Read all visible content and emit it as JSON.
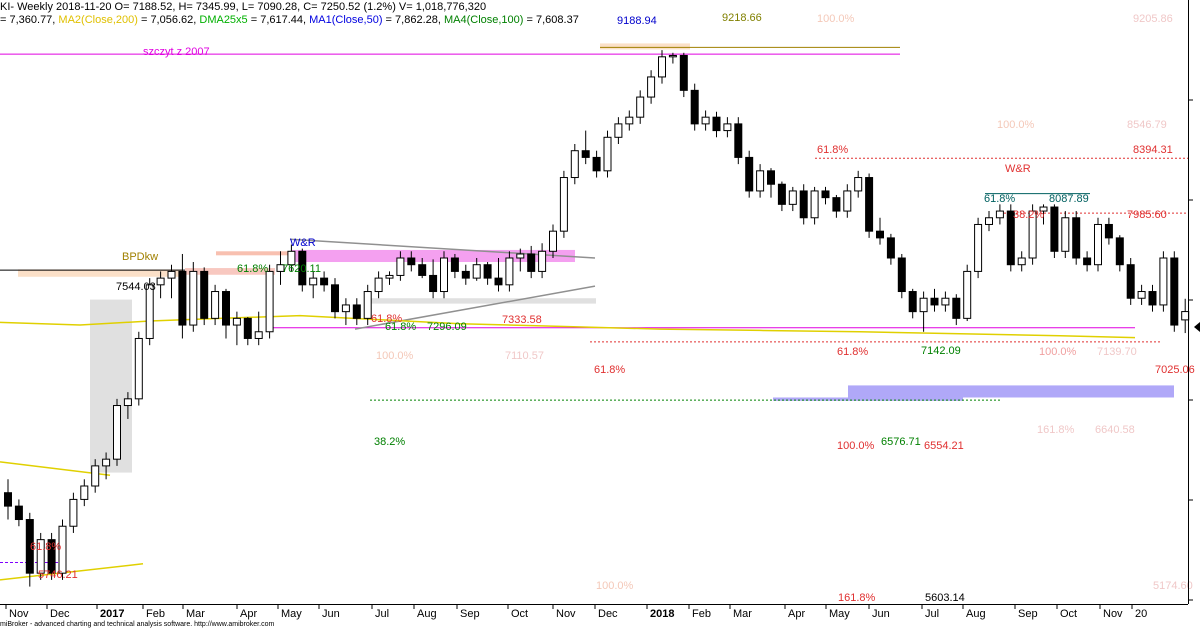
{
  "header": {
    "line1": "KI- Weekly 2018-11-20 O= 7188.52, H= 7345.99, L= 7090.28, C= 7250.52 (1.2%) V= 1,018,776,320",
    "line2": [
      {
        "text": "= 7,360.77, ",
        "color": "#000000"
      },
      {
        "text": "MA2(Close,200)",
        "color": "#e0c000"
      },
      {
        "text": " = 7,056.62, ",
        "color": "#000000"
      },
      {
        "text": "DMA25x5",
        "color": "#00b000"
      },
      {
        "text": " = 7,617.44, ",
        "color": "#000000"
      },
      {
        "text": "MA1(Close,50)",
        "color": "#0000e0"
      },
      {
        "text": " = 7,862.28, ",
        "color": "#000000"
      },
      {
        "text": "MA4(Close,100)",
        "color": "#008000"
      },
      {
        "text": " = 7,608.37",
        "color": "#000000"
      }
    ]
  },
  "footer": "miBroker - advanced charting and technical analysis software. http://www.amibroker.com",
  "chart_data": {
    "type": "candlestick",
    "title": "",
    "ylim": [
      5100,
      9350
    ],
    "x_axis_labels": [
      "Nov",
      "Dec",
      "2017",
      "Feb",
      "Mar",
      "Apr",
      "May",
      "Jun",
      "Jul",
      "Aug",
      "Sep",
      "Oct",
      "Nov",
      "Dec",
      "2018",
      "Feb",
      "Mar",
      "Apr",
      "May",
      "Jun",
      "Jul",
      "Aug",
      "Sep",
      "Oct",
      "Nov",
      "20"
    ],
    "candles": [
      [
        5900,
        6000,
        5700,
        5800
      ],
      [
        5800,
        5850,
        5650,
        5700
      ],
      [
        5700,
        5750,
        5200,
        5300
      ],
      [
        5300,
        5600,
        5250,
        5550
      ],
      [
        5550,
        5600,
        5250,
        5300
      ],
      [
        5300,
        5700,
        5250,
        5650
      ],
      [
        5650,
        5900,
        5600,
        5850
      ],
      [
        5850,
        6000,
        5800,
        5950
      ],
      [
        5950,
        6150,
        5900,
        6100
      ],
      [
        6100,
        6200,
        6000,
        6150
      ],
      [
        6150,
        6600,
        6100,
        6550
      ],
      [
        6550,
        6650,
        6450,
        6600
      ],
      [
        6600,
        7100,
        6550,
        7050
      ],
      [
        7050,
        7500,
        7000,
        7450
      ],
      [
        7450,
        7550,
        7350,
        7500
      ],
      [
        7500,
        7600,
        7350,
        7550
      ],
      [
        7550,
        7680,
        7050,
        7150
      ],
      [
        7150,
        7620,
        7100,
        7550
      ],
      [
        7550,
        7580,
        7150,
        7200
      ],
      [
        7200,
        7450,
        7150,
        7400
      ],
      [
        7400,
        7420,
        7050,
        7150
      ],
      [
        7150,
        7250,
        7000,
        7200
      ],
      [
        7200,
        7210,
        7000,
        7050
      ],
      [
        7050,
        7250,
        7000,
        7100
      ],
      [
        7100,
        7600,
        7050,
        7550
      ],
      [
        7550,
        7700,
        7450,
        7600
      ],
      [
        7600,
        7750,
        7550,
        7700
      ],
      [
        7700,
        7720,
        7400,
        7450
      ],
      [
        7450,
        7550,
        7350,
        7500
      ],
      [
        7500,
        7550,
        7400,
        7450
      ],
      [
        7450,
        7500,
        7200,
        7250
      ],
      [
        7250,
        7350,
        7150,
        7300
      ],
      [
        7300,
        7350,
        7150,
        7200
      ],
      [
        7200,
        7450,
        7150,
        7400
      ],
      [
        7400,
        7550,
        7350,
        7500
      ],
      [
        7500,
        7550,
        7450,
        7520
      ],
      [
        7520,
        7700,
        7480,
        7650
      ],
      [
        7650,
        7700,
        7550,
        7600
      ],
      [
        7600,
        7650,
        7500,
        7520
      ],
      [
        7520,
        7640,
        7350,
        7400
      ],
      [
        7400,
        7700,
        7350,
        7650
      ],
      [
        7650,
        7680,
        7500,
        7550
      ],
      [
        7550,
        7600,
        7450,
        7500
      ],
      [
        7500,
        7650,
        7480,
        7600
      ],
      [
        7600,
        7620,
        7450,
        7500
      ],
      [
        7500,
        7650,
        7400,
        7450
      ],
      [
        7450,
        7700,
        7400,
        7650
      ],
      [
        7650,
        7720,
        7550,
        7680
      ],
      [
        7680,
        7740,
        7500,
        7550
      ],
      [
        7550,
        7760,
        7500,
        7700
      ],
      [
        7700,
        7900,
        7650,
        7850
      ],
      [
        7850,
        8300,
        7800,
        8250
      ],
      [
        8250,
        8500,
        8200,
        8450
      ],
      [
        8450,
        8600,
        8350,
        8400
      ],
      [
        8400,
        8450,
        8250,
        8300
      ],
      [
        8300,
        8600,
        8250,
        8550
      ],
      [
        8550,
        8700,
        8500,
        8650
      ],
      [
        8650,
        8750,
        8600,
        8700
      ],
      [
        8700,
        8900,
        8650,
        8850
      ],
      [
        8850,
        9050,
        8800,
        9000
      ],
      [
        9000,
        9200,
        8950,
        9150
      ],
      [
        9150,
        9180,
        9100,
        9160
      ],
      [
        9160,
        9180,
        8850,
        8900
      ],
      [
        8900,
        8950,
        8600,
        8650
      ],
      [
        8650,
        8750,
        8600,
        8700
      ],
      [
        8700,
        8740,
        8550,
        8600
      ],
      [
        8600,
        8700,
        8550,
        8650
      ],
      [
        8650,
        8700,
        8350,
        8400
      ],
      [
        8400,
        8450,
        8100,
        8150
      ],
      [
        8150,
        8350,
        8100,
        8300
      ],
      [
        8300,
        8320,
        8100,
        8200
      ],
      [
        8200,
        8220,
        8000,
        8050
      ],
      [
        8050,
        8180,
        8000,
        8150
      ],
      [
        8150,
        8200,
        7900,
        7950
      ],
      [
        7950,
        8180,
        7900,
        8150
      ],
      [
        8150,
        8180,
        8050,
        8100
      ],
      [
        8100,
        8120,
        7950,
        8000
      ],
      [
        8000,
        8200,
        7950,
        8150
      ],
      [
        8150,
        8300,
        8100,
        8250
      ],
      [
        8250,
        8280,
        7800,
        7850
      ],
      [
        7850,
        7950,
        7750,
        7800
      ],
      [
        7800,
        7830,
        7600,
        7650
      ],
      [
        7650,
        7680,
        7350,
        7400
      ],
      [
        7400,
        7420,
        7200,
        7250
      ],
      [
        7250,
        7400,
        7100,
        7350
      ],
      [
        7350,
        7420,
        7250,
        7300
      ],
      [
        7300,
        7400,
        7250,
        7350
      ],
      [
        7350,
        7380,
        7150,
        7200
      ],
      [
        7200,
        7600,
        7180,
        7550
      ],
      [
        7550,
        7950,
        7500,
        7900
      ],
      [
        7900,
        8000,
        7850,
        7950
      ],
      [
        7950,
        8050,
        7900,
        8000
      ],
      [
        8000,
        8050,
        7550,
        7600
      ],
      [
        7600,
        7700,
        7550,
        7650
      ],
      [
        7650,
        8050,
        7600,
        8000
      ],
      [
        8000,
        8050,
        7900,
        8030
      ],
      [
        8030,
        8050,
        7650,
        7700
      ],
      [
        7700,
        8000,
        7650,
        7950
      ],
      [
        7950,
        8000,
        7600,
        7650
      ],
      [
        7650,
        7700,
        7550,
        7600
      ],
      [
        7600,
        7950,
        7550,
        7900
      ],
      [
        7900,
        7950,
        7750,
        7800
      ],
      [
        7800,
        7820,
        7550,
        7600
      ],
      [
        7600,
        7650,
        7300,
        7350
      ],
      [
        7350,
        7450,
        7300,
        7400
      ],
      [
        7400,
        7450,
        7250,
        7300
      ],
      [
        7300,
        7700,
        7250,
        7650
      ],
      [
        7650,
        7700,
        7100,
        7150
      ],
      [
        7188.52,
        7345.99,
        7090.28,
        7250.52
      ]
    ],
    "annotations": [
      {
        "text": "9188.94",
        "color": "#0000cc"
      },
      {
        "text": "9218.66",
        "color": "#808000"
      },
      {
        "text": "100.0%",
        "color": "#f4c8b8"
      },
      {
        "text": "9205.86",
        "color": "#f0c8c8"
      },
      {
        "text": "szczyt z 2007",
        "color": "#e000e0"
      },
      {
        "text": "100.0%",
        "color": "#f4c8b8"
      },
      {
        "text": "8546.79",
        "color": "#f0c8c8"
      },
      {
        "text": "61.8%",
        "color": "#e03030"
      },
      {
        "text": "8394.31",
        "color": "#e03030"
      },
      {
        "text": "W&R",
        "color": "#e03030"
      },
      {
        "text": "61.8%",
        "color": "#006060"
      },
      {
        "text": "8087.89",
        "color": "#006060"
      },
      {
        "text": "38.2%",
        "color": "#e03030"
      },
      {
        "text": "7985.60",
        "color": "#e03030"
      },
      {
        "text": "BPDkw",
        "color": "#a08000"
      },
      {
        "text": "W&R",
        "color": "#0000cc"
      },
      {
        "text": "61.8%",
        "color": "#008000"
      },
      {
        "text": "7620.11",
        "color": "#008000"
      },
      {
        "text": "7544.03",
        "color": "#000000"
      },
      {
        "text": "61.8%",
        "color": "#e03030"
      },
      {
        "text": "61.8%",
        "color": "#008000"
      },
      {
        "text": "7296.09",
        "color": "#008000"
      },
      {
        "text": "7333.58",
        "color": "#e03030"
      },
      {
        "text": "100.0%",
        "color": "#f4c8b8"
      },
      {
        "text": "7110.57",
        "color": "#f0c8c8"
      },
      {
        "text": "61.8%",
        "color": "#e03030"
      },
      {
        "text": "7142.09",
        "color": "#008000"
      },
      {
        "text": "100.0%",
        "color": "#f0a0a0"
      },
      {
        "text": "7139.70",
        "color": "#f0c8c8"
      },
      {
        "text": "61.8%",
        "color": "#e03030"
      },
      {
        "text": "7025.06",
        "color": "#e03030"
      },
      {
        "text": "38.2%",
        "color": "#008000"
      },
      {
        "text": "161.8%",
        "color": "#f0c8c8"
      },
      {
        "text": "6640.58",
        "color": "#f0c8c8"
      },
      {
        "text": "100.0%",
        "color": "#e03030"
      },
      {
        "text": "6576.71",
        "color": "#008000"
      },
      {
        "text": "6554.21",
        "color": "#e03030"
      },
      {
        "text": "61.8%",
        "color": "#e03030"
      },
      {
        "text": "5746.21",
        "color": "#e03030"
      },
      {
        "text": "100.0%",
        "color": "#f4c8b8"
      },
      {
        "text": "5174.60",
        "color": "#f0c8c8"
      },
      {
        "text": "161.8%",
        "color": "#e03030"
      },
      {
        "text": "5603.14",
        "color": "#000000"
      }
    ]
  }
}
